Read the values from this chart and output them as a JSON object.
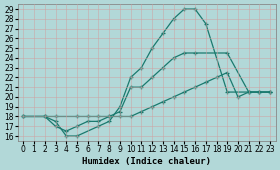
{
  "xlabel": "Humidex (Indice chaleur)",
  "bg_color": "#b2d8d8",
  "grid_color": "#c8e8e8",
  "line_color": "#1a7a6e",
  "xlim": [
    -0.5,
    23.5
  ],
  "ylim": [
    15.5,
    29.5
  ],
  "xticks": [
    0,
    1,
    2,
    3,
    4,
    5,
    6,
    7,
    8,
    9,
    10,
    11,
    12,
    13,
    14,
    15,
    16,
    17,
    18,
    19,
    20,
    21,
    22,
    23
  ],
  "yticks": [
    16,
    17,
    18,
    19,
    20,
    21,
    22,
    23,
    24,
    25,
    26,
    27,
    28,
    29
  ],
  "line1_x": [
    0,
    2,
    3,
    4,
    5,
    6,
    7,
    8,
    9,
    10,
    11,
    12,
    13,
    14,
    15,
    16,
    19,
    21,
    22,
    23
  ],
  "line1_y": [
    18,
    18,
    17,
    16.5,
    17,
    17.5,
    17.5,
    18,
    18.5,
    21,
    21,
    22,
    23,
    24,
    24.5,
    24.5,
    24.5,
    20.5,
    20.5,
    20.5
  ],
  "line2_x": [
    0,
    2,
    3,
    4,
    5,
    7,
    8,
    9,
    10,
    11,
    12,
    13,
    14,
    15,
    16,
    17,
    19,
    21,
    22,
    23
  ],
  "line2_y": [
    18,
    18,
    17.5,
    16,
    16,
    17,
    17.5,
    19,
    22,
    23,
    25,
    26.5,
    28,
    29,
    29,
    27.5,
    20.5,
    20.5,
    20.5,
    20.5
  ],
  "line3_x": [
    0,
    2,
    3,
    5,
    6,
    7,
    8,
    9,
    10,
    11,
    12,
    13,
    14,
    15,
    16,
    17,
    18,
    19,
    20,
    21,
    22,
    23
  ],
  "line3_y": [
    18,
    18,
    18,
    18,
    18,
    18,
    18,
    18,
    18,
    18.5,
    19,
    19.5,
    20,
    20.5,
    21,
    21.5,
    22,
    22.5,
    20,
    20.5,
    20.5,
    20.5
  ],
  "xlabel_fontsize": 6.5,
  "tick_fontsize": 5.5
}
